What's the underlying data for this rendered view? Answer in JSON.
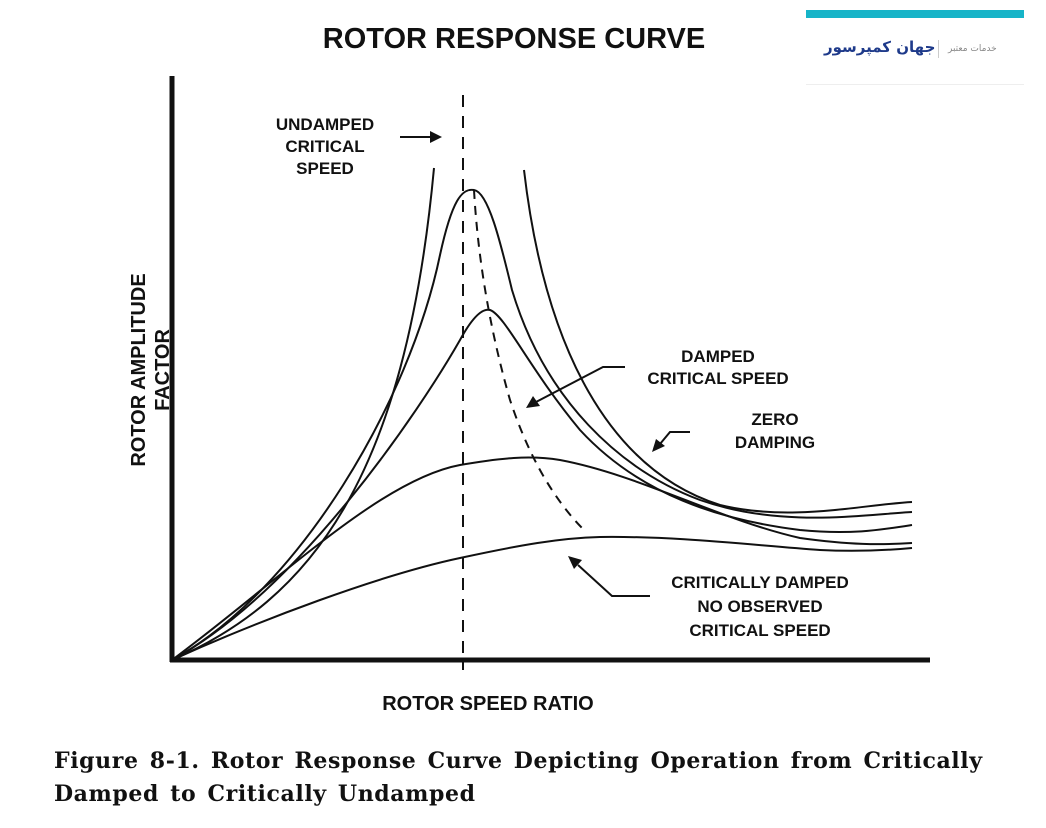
{
  "figure": {
    "title": "ROTOR RESPONSE CURVE",
    "y_axis_title_line1": "ROTOR AMPLITUDE",
    "y_axis_title_line2": "FACTOR",
    "x_axis_title": "ROTOR SPEED RATIO",
    "labels": {
      "undamped_line1": "UNDAMPED",
      "undamped_line2": "CRITICAL",
      "undamped_line3": "SPEED",
      "damped_line1": "DAMPED",
      "damped_line2": "CRITICAL SPEED",
      "zero_line1": "ZERO",
      "zero_line2": "DAMPING",
      "crit_line1": "CRITICALLY DAMPED",
      "crit_line2": "NO OBSERVED",
      "crit_line3": "CRITICAL SPEED"
    }
  },
  "caption": {
    "line1": "Figure 8-1. Rotor Response Curve Depicting Operation from Critically",
    "line2": "Damped to Critically Undamped"
  },
  "watermark": {
    "brand_name": "جهان کمپرسور",
    "tagline": "خدمات معتبر",
    "accent_color": "#17b4c8",
    "brand_color": "#1e3a8a"
  },
  "colors": {
    "ink": "#111111",
    "background": "#ffffff"
  }
}
